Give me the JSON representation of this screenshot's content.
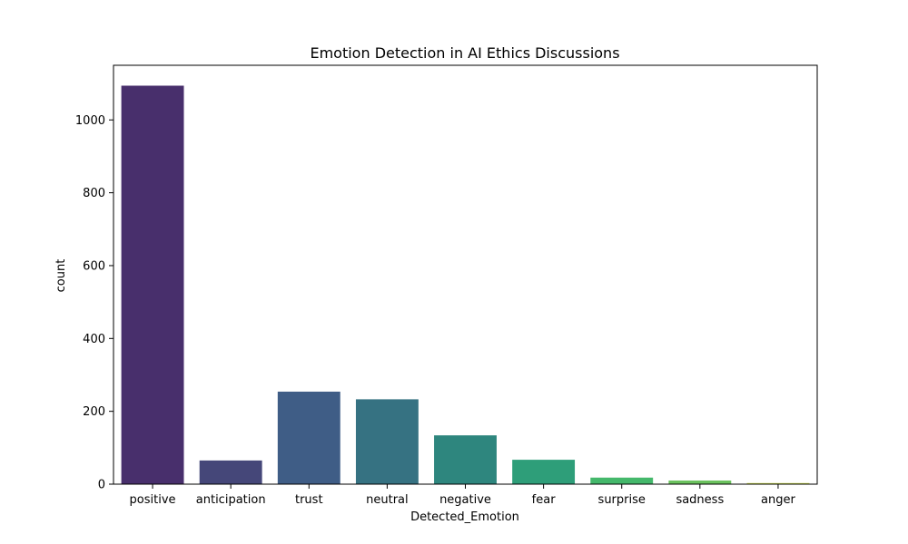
{
  "chart_data": {
    "type": "bar",
    "title": "Emotion Detection in AI Ethics Discussions",
    "xlabel": "Detected_Emotion",
    "ylabel": "count",
    "categories": [
      "positive",
      "anticipation",
      "trust",
      "neutral",
      "negative",
      "fear",
      "surprise",
      "sadness",
      "anger"
    ],
    "values": [
      1094,
      65,
      254,
      233,
      134,
      67,
      18,
      10,
      3
    ],
    "colors": [
      "#482f6c",
      "#454779",
      "#3f5d86",
      "#367282",
      "#2e867e",
      "#2e9e79",
      "#44b86b",
      "#6bc25e",
      "#c7dc43"
    ],
    "ylim": [
      0,
      1150
    ],
    "yticks": [
      0,
      200,
      400,
      600,
      800,
      1000
    ],
    "grid": false,
    "legend": "none"
  }
}
